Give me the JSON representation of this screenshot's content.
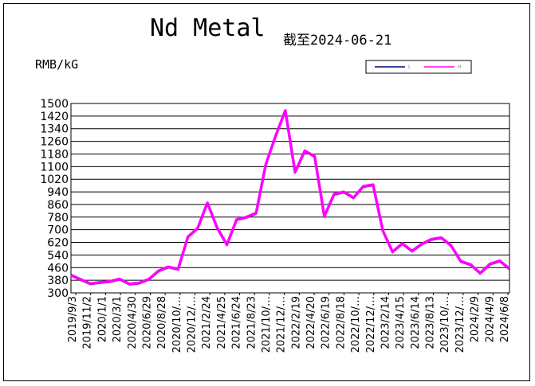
{
  "chart_data": {
    "type": "line",
    "title": "Nd Metal",
    "subtitle": "截至2024-06-21",
    "ylabel": "RMB/kG",
    "xlabel": "",
    "ylim": [
      300,
      1500
    ],
    "yticks": [
      1500,
      1420,
      1340,
      1260,
      1180,
      1100,
      1020,
      940,
      860,
      780,
      700,
      620,
      540,
      460,
      380,
      300
    ],
    "grid": "horizontal",
    "legend_position": "top-right",
    "x_tick_labels": [
      "2019/9/3",
      "2019/11/2",
      "2020/1/1",
      "2020/3/1",
      "2020/4/30",
      "2020/6/29",
      "2020/8/28",
      "2020/10/27",
      "2020/12/26",
      "2021/2/24",
      "2021/4/25",
      "2021/6/24",
      "2021/8/23",
      "2021/10/22",
      "2021/12/21",
      "2022/2/19",
      "2022/4/20",
      "2022/6/19",
      "2022/8/18",
      "2022/10/17",
      "2022/12/16",
      "2023/2/14",
      "2023/4/15",
      "2023/6/14",
      "2023/8/13",
      "2023/10/12",
      "2023/12/11",
      "2024/2/9",
      "2024/4/9",
      "2024/6/8"
    ],
    "x_tick_display": [
      "2019/9/3",
      "2019/11/2",
      "2020/1/1",
      "2020/3/1",
      "2020/4/30",
      "2020/6/29",
      "2020/8/28",
      "2020/10/…",
      "2020/12/…",
      "2021/2/24",
      "2021/4/25",
      "2021/6/24",
      "2021/8/23",
      "2021/10/…",
      "2021/12/…",
      "2022/2/19",
      "2022/4/20",
      "2022/6/19",
      "2022/8/18",
      "2022/10/…",
      "2022/12/…",
      "2023/2/14",
      "2023/4/15",
      "2023/6/14",
      "2023/8/13",
      "2023/10/…",
      "2023/12/…",
      "2024/2/9",
      "2024/4/9",
      "2024/6/8"
    ],
    "series": [
      {
        "name": "L",
        "color": "#000080",
        "values": [
          408,
          380,
          354,
          362,
          368,
          383,
          352,
          358,
          382,
          435,
          460,
          446,
          650,
          705,
          865,
          708,
          600,
          760,
          775,
          800,
          1110,
          1290,
          1450,
          1060,
          1195,
          1160,
          780,
          920,
          935,
          898,
          970,
          980,
          690,
          555,
          608,
          560,
          605,
          635,
          645,
          595,
          495,
          475,
          420,
          478,
          498,
          448
        ]
      },
      {
        "name": "H",
        "color": "#ff00ff",
        "values": [
          413,
          385,
          359,
          367,
          373,
          388,
          357,
          363,
          387,
          440,
          465,
          451,
          655,
          710,
          870,
          713,
          605,
          765,
          780,
          805,
          1115,
          1295,
          1455,
          1065,
          1200,
          1165,
          785,
          925,
          940,
          903,
          975,
          985,
          695,
          560,
          613,
          565,
          610,
          640,
          650,
          600,
          500,
          480,
          425,
          483,
          503,
          453
        ]
      }
    ]
  },
  "legend": {
    "label_l": "L",
    "label_h": "H"
  },
  "colors": {
    "series_l": "#000080",
    "series_h": "#ff00ff",
    "grid": "#000000"
  }
}
